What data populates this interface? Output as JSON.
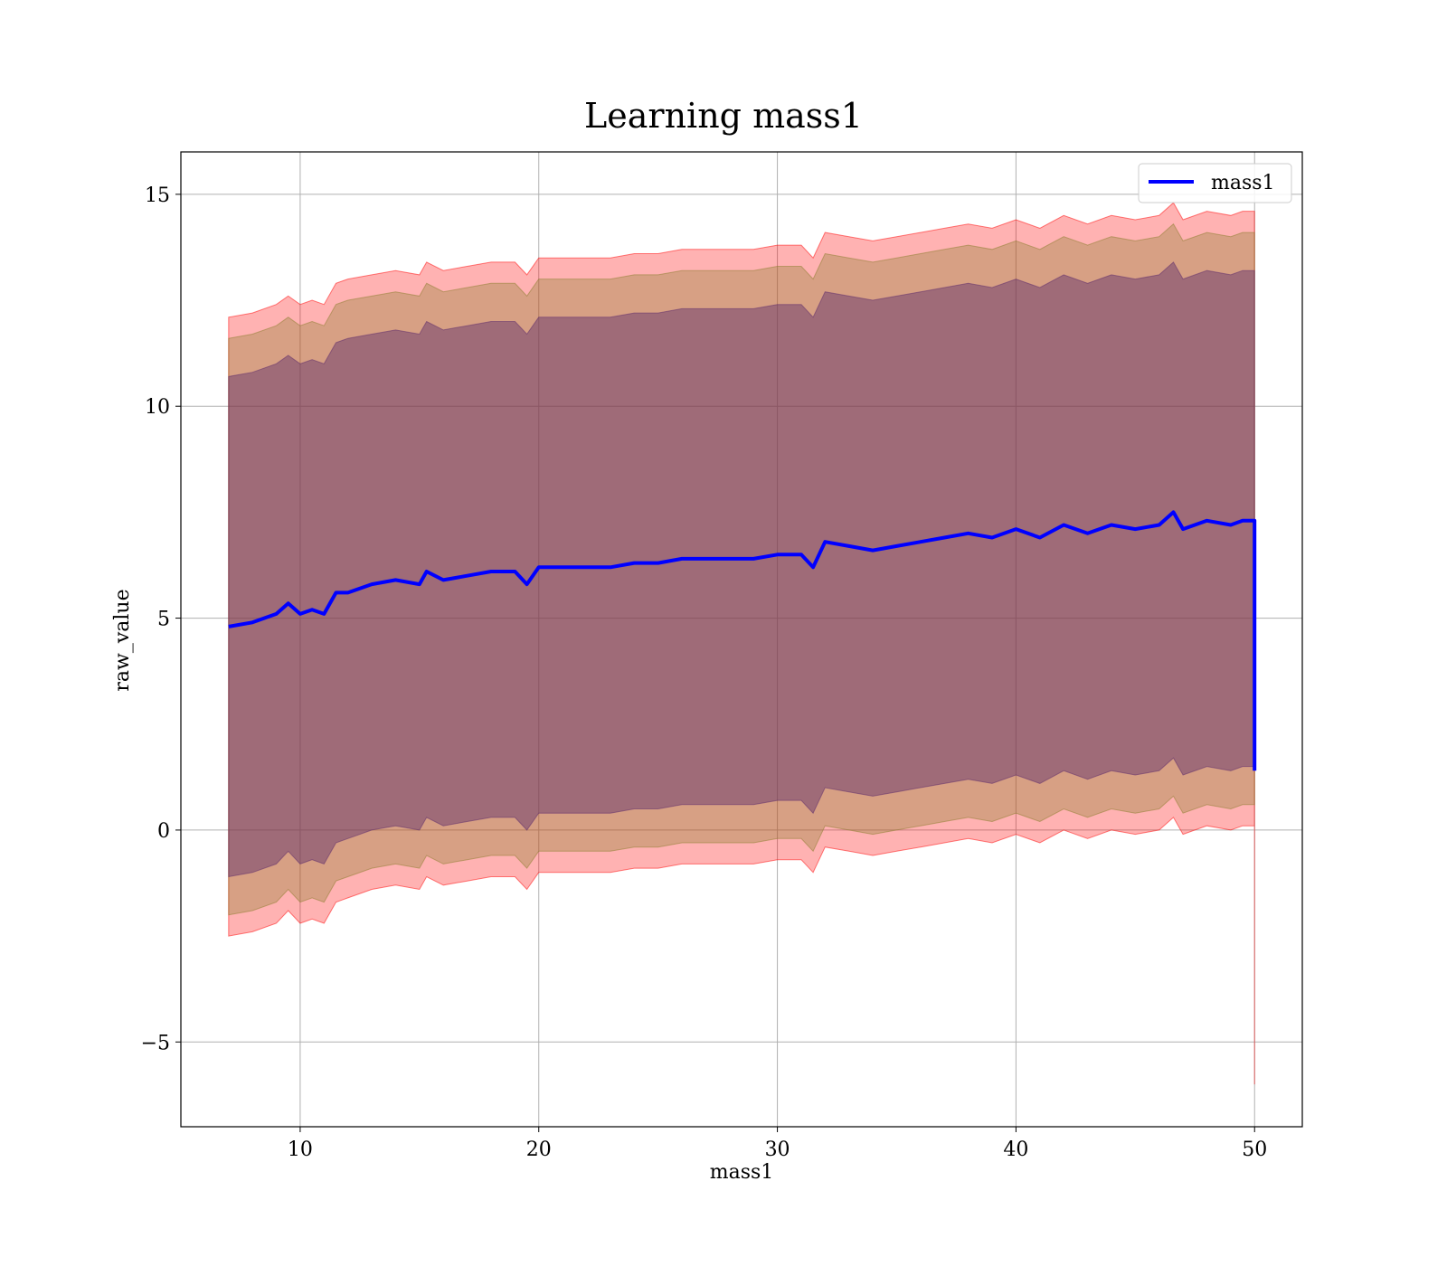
{
  "chart_data": {
    "type": "line",
    "title": "Learning mass1",
    "xlabel": "mass1",
    "ylabel": "raw_value",
    "xlim": [
      5,
      52
    ],
    "ylim": [
      -7,
      16
    ],
    "xticks": [
      10,
      20,
      30,
      40,
      50
    ],
    "yticks": [
      -5,
      0,
      5,
      10,
      15
    ],
    "ytick_labels": [
      "−5",
      "0",
      "5",
      "10",
      "15"
    ],
    "grid": true,
    "legend": {
      "position": "top-right",
      "entries": [
        "mass1"
      ]
    },
    "colors": {
      "line": "#0000ff",
      "band_outer": "#ff0000",
      "band_middle": "#8b7d2e",
      "band_inner": "#5b2a6b"
    },
    "series": [
      {
        "name": "mass1",
        "x": [
          7.0,
          8.0,
          9.0,
          9.5,
          10.0,
          10.5,
          11.0,
          11.5,
          12.0,
          13.0,
          14.0,
          15.0,
          15.3,
          16.0,
          17.0,
          18.0,
          19.0,
          19.5,
          20.0,
          21.0,
          22.0,
          23.0,
          24.0,
          25.0,
          26.0,
          27.0,
          28.0,
          29.0,
          30.0,
          31.0,
          31.5,
          32.0,
          33.0,
          34.0,
          35.0,
          36.0,
          37.0,
          38.0,
          39.0,
          40.0,
          41.0,
          42.0,
          43.0,
          44.0,
          45.0,
          46.0,
          46.6,
          47.0,
          48.0,
          49.0,
          49.5,
          50.0
        ],
        "y": [
          4.8,
          4.9,
          5.1,
          5.35,
          5.1,
          5.2,
          5.1,
          5.6,
          5.6,
          5.8,
          5.9,
          5.8,
          6.1,
          5.9,
          6.0,
          6.1,
          6.1,
          5.8,
          6.2,
          6.2,
          6.2,
          6.2,
          6.3,
          6.3,
          6.4,
          6.4,
          6.4,
          6.4,
          6.5,
          6.5,
          6.2,
          6.8,
          6.7,
          6.6,
          6.7,
          6.8,
          6.9,
          7.0,
          6.9,
          7.1,
          6.9,
          7.2,
          7.0,
          7.2,
          7.1,
          7.2,
          7.5,
          7.1,
          7.3,
          7.2,
          7.3,
          7.3
        ],
        "bands": [
          {
            "lower": [
              -2.5,
              -2.4,
              -2.2,
              -1.9,
              -2.2,
              -2.1,
              -2.2,
              -1.7,
              -1.6,
              -1.4,
              -1.3,
              -1.4,
              -1.1,
              -1.3,
              -1.2,
              -1.1,
              -1.1,
              -1.4,
              -1.0,
              -1.0,
              -1.0,
              -1.0,
              -0.9,
              -0.9,
              -0.8,
              -0.8,
              -0.8,
              -0.8,
              -0.7,
              -0.7,
              -1.0,
              -0.4,
              -0.5,
              -0.6,
              -0.5,
              -0.4,
              -0.3,
              -0.2,
              -0.3,
              -0.1,
              -0.3,
              0.0,
              -0.2,
              0.0,
              -0.1,
              0.0,
              0.3,
              -0.1,
              0.1,
              0.0,
              0.1,
              0.1
            ],
            "upper": [
              12.1,
              12.2,
              12.4,
              12.6,
              12.4,
              12.5,
              12.4,
              12.9,
              13.0,
              13.1,
              13.2,
              13.1,
              13.4,
              13.2,
              13.3,
              13.4,
              13.4,
              13.1,
              13.5,
              13.5,
              13.5,
              13.5,
              13.6,
              13.6,
              13.7,
              13.7,
              13.7,
              13.7,
              13.8,
              13.8,
              13.5,
              14.1,
              14.0,
              13.9,
              14.0,
              14.1,
              14.2,
              14.3,
              14.2,
              14.4,
              14.2,
              14.5,
              14.3,
              14.5,
              14.4,
              14.5,
              14.8,
              14.4,
              14.6,
              14.5,
              14.6,
              14.6
            ]
          },
          {
            "lower": [
              -2.0,
              -1.9,
              -1.7,
              -1.4,
              -1.7,
              -1.6,
              -1.7,
              -1.2,
              -1.1,
              -0.9,
              -0.8,
              -0.9,
              -0.6,
              -0.8,
              -0.7,
              -0.6,
              -0.6,
              -0.9,
              -0.5,
              -0.5,
              -0.5,
              -0.5,
              -0.4,
              -0.4,
              -0.3,
              -0.3,
              -0.3,
              -0.3,
              -0.2,
              -0.2,
              -0.5,
              0.1,
              0.0,
              -0.1,
              0.0,
              0.1,
              0.2,
              0.3,
              0.2,
              0.4,
              0.2,
              0.5,
              0.3,
              0.5,
              0.4,
              0.5,
              0.8,
              0.4,
              0.6,
              0.5,
              0.6,
              0.6
            ],
            "upper": [
              11.6,
              11.7,
              11.9,
              12.1,
              11.9,
              12.0,
              11.9,
              12.4,
              12.5,
              12.6,
              12.7,
              12.6,
              12.9,
              12.7,
              12.8,
              12.9,
              12.9,
              12.6,
              13.0,
              13.0,
              13.0,
              13.0,
              13.1,
              13.1,
              13.2,
              13.2,
              13.2,
              13.2,
              13.3,
              13.3,
              13.0,
              13.6,
              13.5,
              13.4,
              13.5,
              13.6,
              13.7,
              13.8,
              13.7,
              13.9,
              13.7,
              14.0,
              13.8,
              14.0,
              13.9,
              14.0,
              14.3,
              13.9,
              14.1,
              14.0,
              14.1,
              14.1
            ]
          },
          {
            "lower": [
              -1.1,
              -1.0,
              -0.8,
              -0.5,
              -0.8,
              -0.7,
              -0.8,
              -0.3,
              -0.2,
              0.0,
              0.1,
              0.0,
              0.3,
              0.1,
              0.2,
              0.3,
              0.3,
              0.0,
              0.4,
              0.4,
              0.4,
              0.4,
              0.5,
              0.5,
              0.6,
              0.6,
              0.6,
              0.6,
              0.7,
              0.7,
              0.4,
              1.0,
              0.9,
              0.8,
              0.9,
              1.0,
              1.1,
              1.2,
              1.1,
              1.3,
              1.1,
              1.4,
              1.2,
              1.4,
              1.3,
              1.4,
              1.7,
              1.3,
              1.5,
              1.4,
              1.5,
              1.5
            ],
            "upper": [
              10.7,
              10.8,
              11.0,
              11.2,
              11.0,
              11.1,
              11.0,
              11.5,
              11.6,
              11.7,
              11.8,
              11.7,
              12.0,
              11.8,
              11.9,
              12.0,
              12.0,
              11.7,
              12.1,
              12.1,
              12.1,
              12.1,
              12.2,
              12.2,
              12.3,
              12.3,
              12.3,
              12.3,
              12.4,
              12.4,
              12.1,
              12.7,
              12.6,
              12.5,
              12.6,
              12.7,
              12.8,
              12.9,
              12.8,
              13.0,
              12.8,
              13.1,
              12.9,
              13.1,
              13.0,
              13.1,
              13.4,
              13.0,
              13.2,
              13.1,
              13.2,
              13.2
            ]
          }
        ],
        "final_drop": {
          "x": 50.0,
          "y": 1.4,
          "band_low": -6.0
        }
      }
    ]
  }
}
